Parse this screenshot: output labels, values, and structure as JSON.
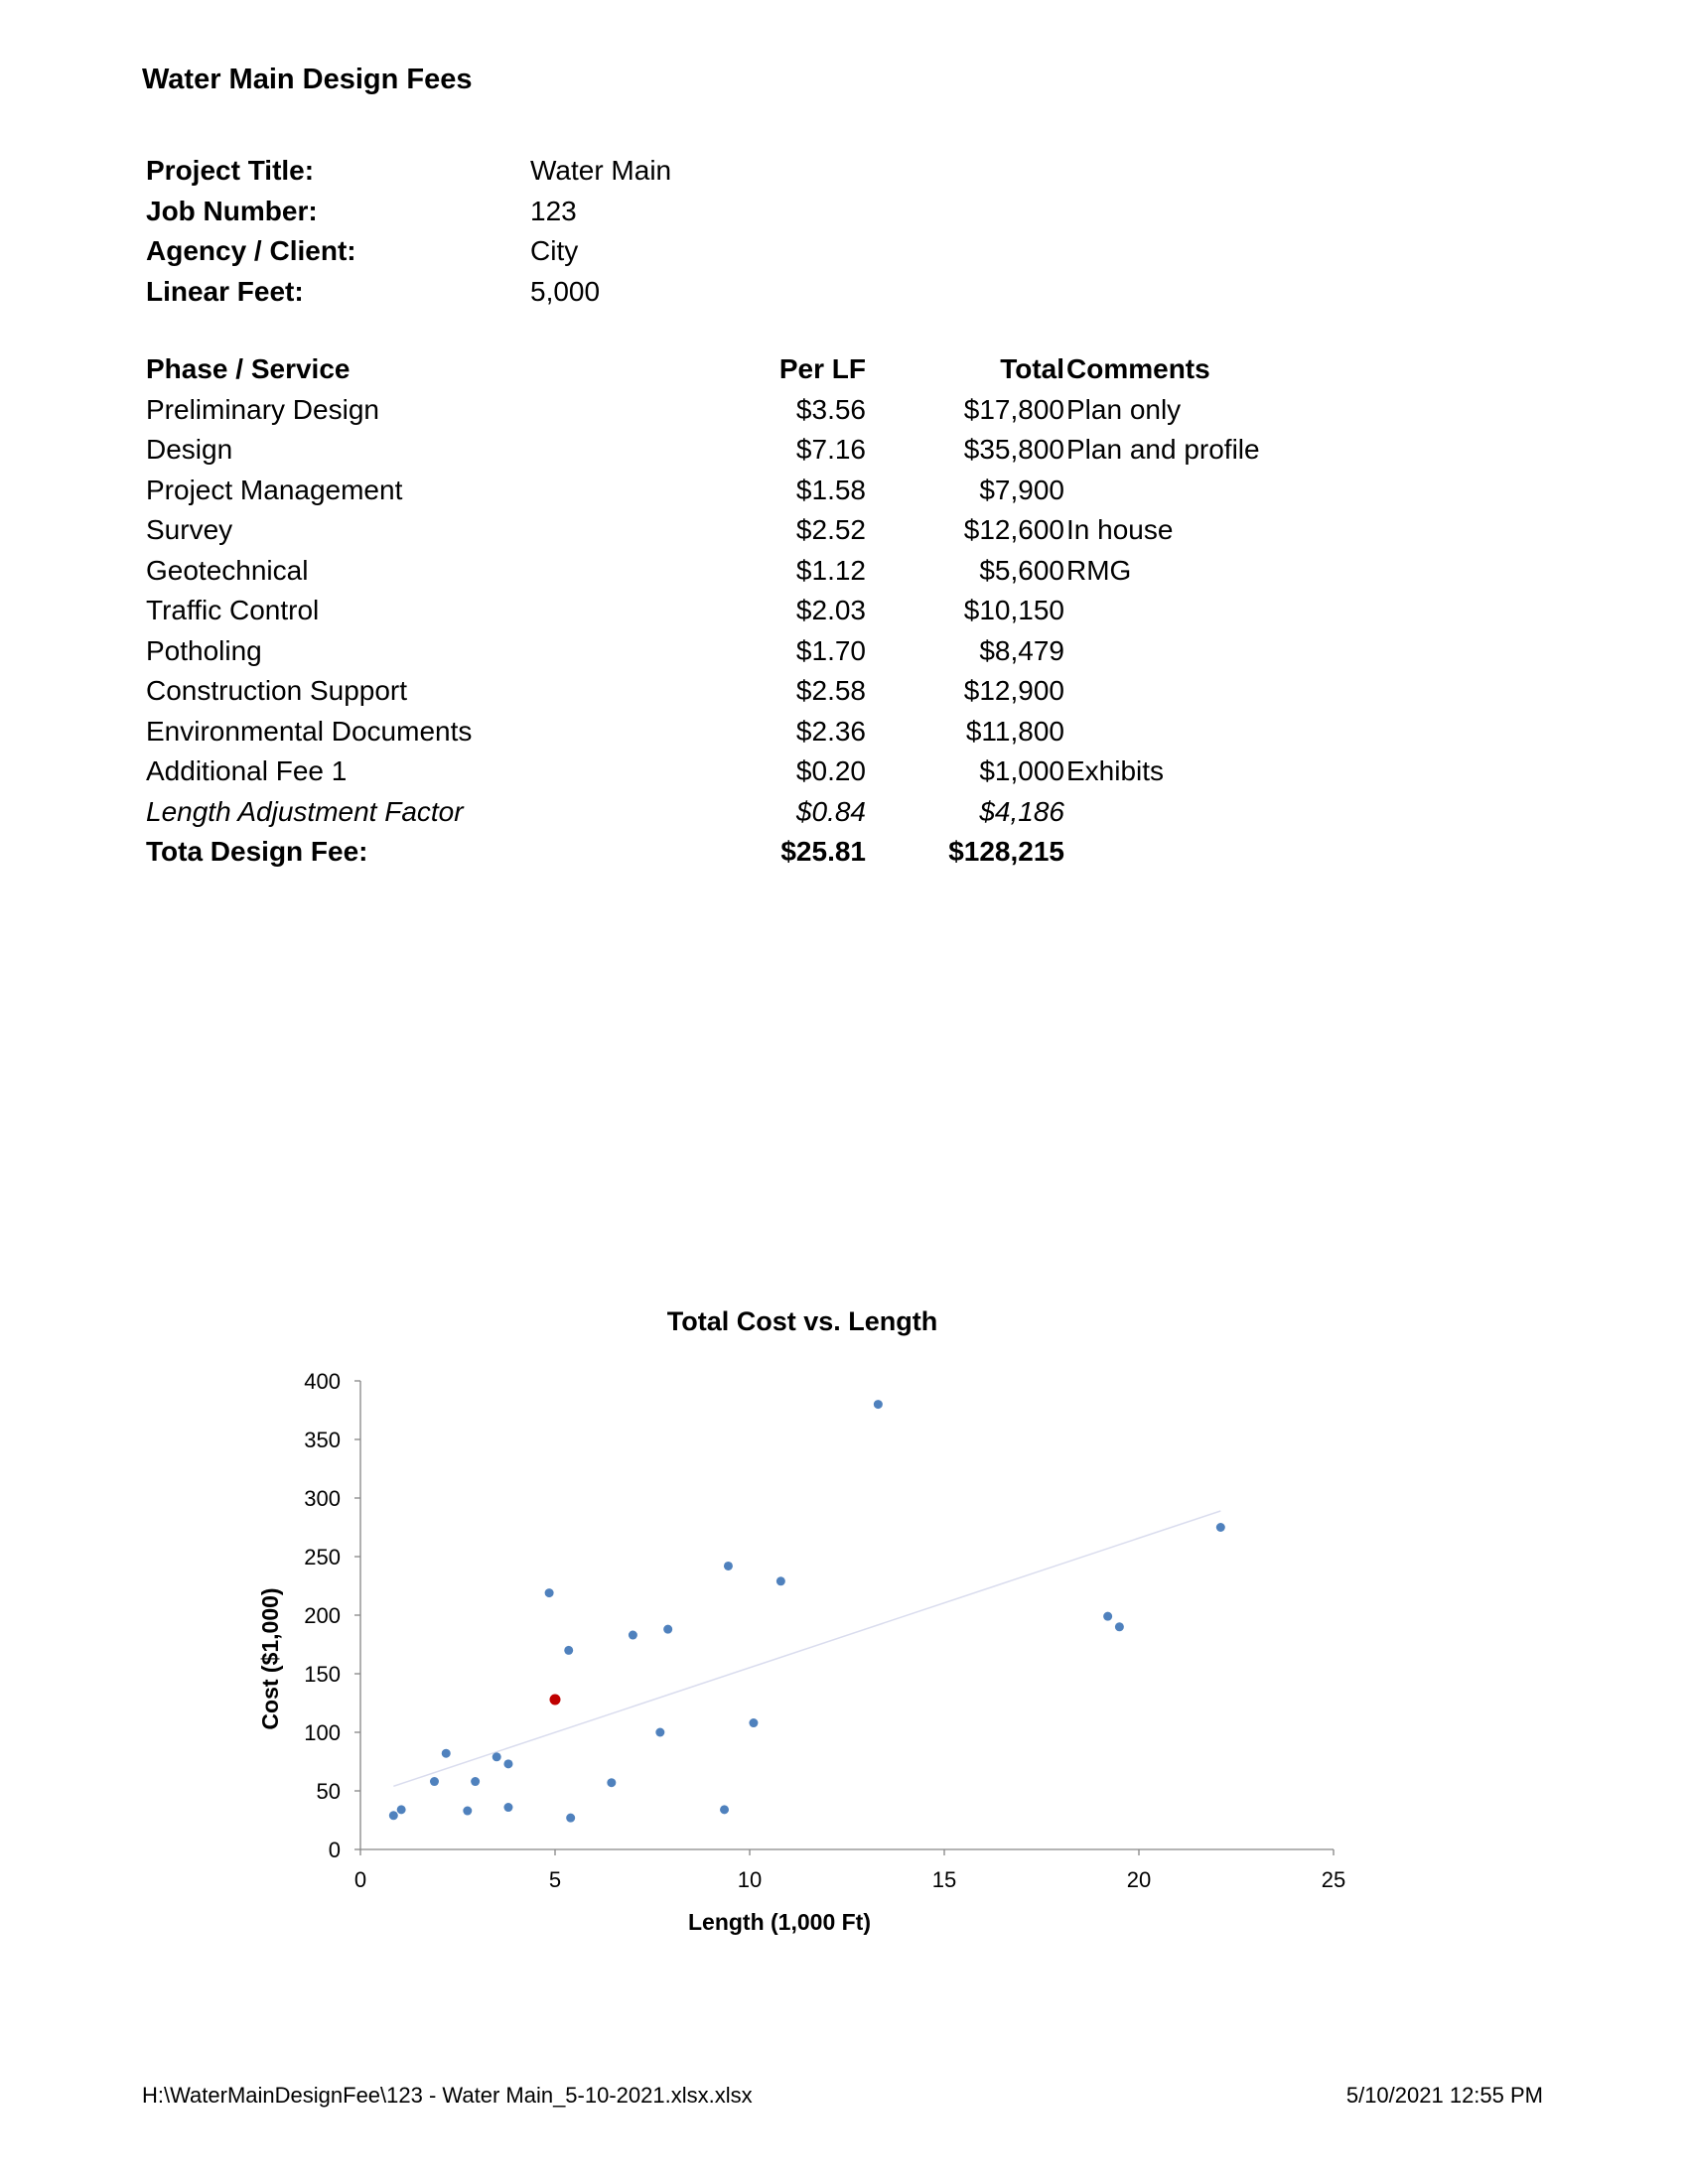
{
  "document": {
    "title": "Water Main Design Fees"
  },
  "project_info": [
    {
      "label": "Project Title:",
      "value": "Water Main"
    },
    {
      "label": "Job Number:",
      "value": "123"
    },
    {
      "label": "Agency / Client:",
      "value": "City"
    },
    {
      "label": "Linear Feet:",
      "value": "5,000"
    }
  ],
  "fee_table": {
    "headers": {
      "phase": "Phase / Service",
      "per_lf": "Per LF",
      "total": "Total",
      "comments": "Comments"
    },
    "rows": [
      {
        "phase": "Preliminary Design",
        "per_lf": "$3.56",
        "total": "$17,800",
        "comments": "Plan only"
      },
      {
        "phase": "Design",
        "per_lf": "$7.16",
        "total": "$35,800",
        "comments": "Plan and profile"
      },
      {
        "phase": "Project Management",
        "per_lf": "$1.58",
        "total": "$7,900",
        "comments": ""
      },
      {
        "phase": "Survey",
        "per_lf": "$2.52",
        "total": "$12,600",
        "comments": "In house"
      },
      {
        "phase": "Geotechnical",
        "per_lf": "$1.12",
        "total": "$5,600",
        "comments": "RMG"
      },
      {
        "phase": "Traffic Control",
        "per_lf": "$2.03",
        "total": "$10,150",
        "comments": ""
      },
      {
        "phase": "Potholing",
        "per_lf": "$1.70",
        "total": "$8,479",
        "comments": ""
      },
      {
        "phase": "Construction Support",
        "per_lf": "$2.58",
        "total": "$12,900",
        "comments": ""
      },
      {
        "phase": "Environmental Documents",
        "per_lf": "$2.36",
        "total": "$11,800",
        "comments": ""
      },
      {
        "phase": "Additional Fee 1",
        "per_lf": "$0.20",
        "total": "$1,000",
        "comments": "Exhibits"
      }
    ],
    "adjustment": {
      "phase": "Length Adjustment Factor",
      "per_lf": "$0.84",
      "total": "$4,186"
    },
    "total": {
      "phase": "Tota Design Fee:",
      "per_lf": "$25.81",
      "total": "$128,215"
    }
  },
  "chart_data": {
    "type": "scatter",
    "title": "Total Cost vs. Length",
    "xlabel": "Length (1,000 Ft)",
    "ylabel": "Cost ($1,000)",
    "xlim": [
      0,
      25
    ],
    "ylim": [
      0,
      400
    ],
    "xticks": [
      0,
      5,
      10,
      15,
      20,
      25
    ],
    "yticks": [
      0,
      50,
      100,
      150,
      200,
      250,
      300,
      350,
      400
    ],
    "grid": false,
    "legend": "none",
    "series_color": "#4f81bd",
    "highlight_color": "#c00000",
    "trendline_color": "#d9dcee",
    "points": [
      {
        "x": 0.85,
        "y": 29
      },
      {
        "x": 1.05,
        "y": 34
      },
      {
        "x": 1.9,
        "y": 58
      },
      {
        "x": 2.2,
        "y": 82
      },
      {
        "x": 2.75,
        "y": 33
      },
      {
        "x": 2.95,
        "y": 58
      },
      {
        "x": 3.5,
        "y": 79
      },
      {
        "x": 3.8,
        "y": 36
      },
      {
        "x": 3.8,
        "y": 73
      },
      {
        "x": 4.85,
        "y": 219
      },
      {
        "x": 5.35,
        "y": 170
      },
      {
        "x": 5.4,
        "y": 27
      },
      {
        "x": 6.45,
        "y": 57
      },
      {
        "x": 7.0,
        "y": 183
      },
      {
        "x": 7.7,
        "y": 100
      },
      {
        "x": 7.9,
        "y": 188
      },
      {
        "x": 9.35,
        "y": 34
      },
      {
        "x": 9.45,
        "y": 242
      },
      {
        "x": 10.1,
        "y": 108
      },
      {
        "x": 10.8,
        "y": 229
      },
      {
        "x": 13.3,
        "y": 380
      },
      {
        "x": 19.2,
        "y": 199
      },
      {
        "x": 19.5,
        "y": 190
      },
      {
        "x": 22.1,
        "y": 275
      }
    ],
    "highlight_point": {
      "x": 5.0,
      "y": 128
    },
    "trendline": {
      "x": [
        0.85,
        22.1
      ],
      "y": [
        54,
        289
      ]
    }
  },
  "footer": {
    "path": "H:\\WaterMainDesignFee\\123 - Water Main_5-10-2021.xlsx.xlsx",
    "timestamp": "5/10/2021 12:55 PM"
  }
}
